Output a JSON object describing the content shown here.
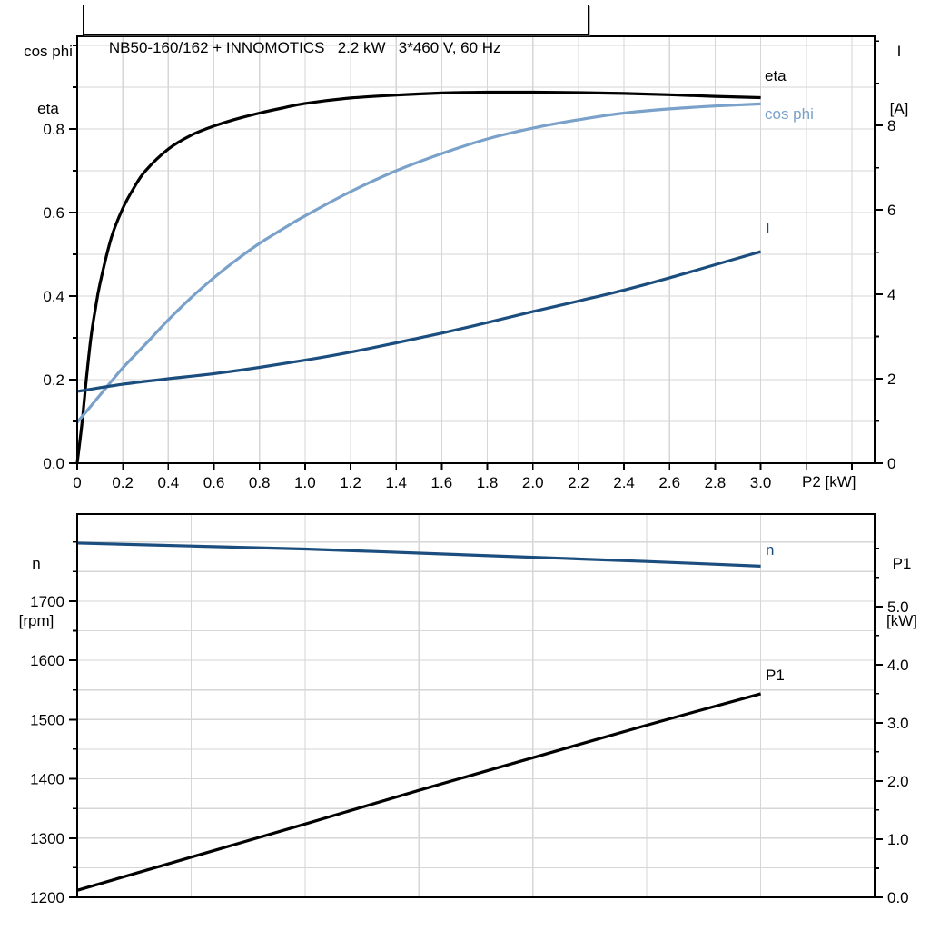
{
  "title": "NB50-160/162 + INNOMOTICS   2.2 kW   3*460 V, 60 Hz",
  "colors": {
    "background": "#ffffff",
    "grid": "#d6d6d6",
    "axis": "#000000",
    "eta": "#000000",
    "cos_phi": "#7aa1c9",
    "current": "#1b4e7e",
    "speed": "#1b4e7e",
    "p1": "#000000"
  },
  "chart_data": [
    {
      "type": "line",
      "title": "NB50-160/162 + INNOMOTICS   2.2 kW   3*460 V, 60 Hz",
      "x_axis": {
        "label": "P2 [kW]",
        "min": 0,
        "max": 3.5,
        "grid_step": 0.2,
        "tick_step": 0.2,
        "tick_max": 3.4,
        "ticks": [
          [
            0,
            "0"
          ],
          [
            0.2,
            "0.2"
          ],
          [
            0.4,
            "0.4"
          ],
          [
            0.6,
            "0.6"
          ],
          [
            0.8,
            "0.8"
          ],
          [
            1,
            "1.0"
          ],
          [
            1.2,
            "1.2"
          ],
          [
            1.4,
            "1.4"
          ],
          [
            1.6,
            "1.6"
          ],
          [
            1.8,
            "1.8"
          ],
          [
            2,
            "2.0"
          ],
          [
            2.2,
            "2.2"
          ],
          [
            2.4,
            "2.4"
          ],
          [
            2.6,
            "2.6"
          ],
          [
            2.8,
            "2.8"
          ],
          [
            3,
            "3.0"
          ]
        ]
      },
      "y_left": {
        "label": [
          "cos phi",
          "eta"
        ],
        "min": 0,
        "max": 1.0217,
        "grid_step": 0.1,
        "minor_tick_step": 0.1,
        "tick_max": 1.0,
        "ticks": [
          [
            0,
            "0.0"
          ],
          [
            0.2,
            "0.2"
          ],
          [
            0.4,
            "0.4"
          ],
          [
            0.6,
            "0.6"
          ],
          [
            0.8,
            "0.8"
          ]
        ]
      },
      "y_right": {
        "label": [
          "I",
          "[A]"
        ],
        "min": 0,
        "max": 10.11,
        "minor_tick_step": 1,
        "tick_max": 10,
        "ticks": [
          [
            0,
            "0"
          ],
          [
            2,
            "2"
          ],
          [
            4,
            "4"
          ],
          [
            6,
            "6"
          ],
          [
            8,
            "8"
          ]
        ]
      },
      "series": [
        {
          "name": "eta",
          "axis": "left",
          "color": "#000000",
          "points": [
            [
              0,
              0
            ],
            [
              0.02,
              0.09
            ],
            [
              0.04,
              0.2
            ],
            [
              0.06,
              0.3
            ],
            [
              0.08,
              0.37
            ],
            [
              0.1,
              0.43
            ],
            [
              0.15,
              0.54
            ],
            [
              0.2,
              0.61
            ],
            [
              0.25,
              0.66
            ],
            [
              0.3,
              0.7
            ],
            [
              0.4,
              0.752
            ],
            [
              0.5,
              0.785
            ],
            [
              0.6,
              0.807
            ],
            [
              0.7,
              0.824
            ],
            [
              0.8,
              0.838
            ],
            [
              0.9,
              0.85
            ],
            [
              1,
              0.861
            ],
            [
              1.2,
              0.874
            ],
            [
              1.4,
              0.881
            ],
            [
              1.6,
              0.886
            ],
            [
              1.8,
              0.888
            ],
            [
              2,
              0.888
            ],
            [
              2.2,
              0.887
            ],
            [
              2.4,
              0.885
            ],
            [
              2.6,
              0.882
            ],
            [
              2.8,
              0.878
            ],
            [
              3,
              0.875
            ]
          ]
        },
        {
          "name": "cos phi",
          "axis": "left",
          "color": "#7aa1c9",
          "points": [
            [
              0,
              0.098
            ],
            [
              0.05,
              0.13
            ],
            [
              0.1,
              0.163
            ],
            [
              0.2,
              0.228
            ],
            [
              0.3,
              0.285
            ],
            [
              0.4,
              0.343
            ],
            [
              0.5,
              0.396
            ],
            [
              0.6,
              0.444
            ],
            [
              0.7,
              0.487
            ],
            [
              0.8,
              0.526
            ],
            [
              0.9,
              0.56
            ],
            [
              1,
              0.592
            ],
            [
              1.2,
              0.65
            ],
            [
              1.4,
              0.7
            ],
            [
              1.6,
              0.741
            ],
            [
              1.8,
              0.776
            ],
            [
              2,
              0.802
            ],
            [
              2.2,
              0.822
            ],
            [
              2.4,
              0.838
            ],
            [
              2.6,
              0.848
            ],
            [
              2.8,
              0.855
            ],
            [
              3,
              0.86
            ]
          ]
        },
        {
          "name": "I",
          "axis": "right",
          "color": "#1b4e7e",
          "points": [
            [
              0,
              1.7
            ],
            [
              0.2,
              1.87
            ],
            [
              0.4,
              2.0
            ],
            [
              0.6,
              2.12
            ],
            [
              0.8,
              2.27
            ],
            [
              1,
              2.44
            ],
            [
              1.2,
              2.63
            ],
            [
              1.4,
              2.85
            ],
            [
              1.6,
              3.08
            ],
            [
              1.8,
              3.33
            ],
            [
              2,
              3.59
            ],
            [
              2.2,
              3.84
            ],
            [
              2.4,
              4.1
            ],
            [
              2.6,
              4.39
            ],
            [
              2.8,
              4.7
            ],
            [
              3,
              5.01
            ]
          ]
        }
      ]
    },
    {
      "type": "line",
      "x_axis": {
        "label": "",
        "min": 0,
        "max": 3.5,
        "grid_step": 0.5,
        "tick_step": null,
        "ticks": []
      },
      "y_left": {
        "label": [
          "n",
          "[rpm]"
        ],
        "min": 1200,
        "max": 1847,
        "grid_step": 50,
        "minor_tick_step": 50,
        "tick_max": 1800,
        "ticks": [
          [
            1200,
            "1200"
          ],
          [
            1300,
            "1300"
          ],
          [
            1400,
            "1400"
          ],
          [
            1500,
            "1500"
          ],
          [
            1600,
            "1600"
          ],
          [
            1700,
            "1700"
          ]
        ]
      },
      "y_right": {
        "label": [
          "P1",
          "[kW]"
        ],
        "min": 0,
        "max": 6.59,
        "minor_tick_step": 0.5,
        "tick_max": 6,
        "ticks": [
          [
            0,
            "0.0"
          ],
          [
            1,
            "1.0"
          ],
          [
            2,
            "2.0"
          ],
          [
            3,
            "3.0"
          ],
          [
            4,
            "4.0"
          ],
          [
            5,
            "5.0"
          ]
        ]
      },
      "series": [
        {
          "name": "n",
          "axis": "left",
          "color": "#1b4e7e",
          "points": [
            [
              0,
              1798
            ],
            [
              0.5,
              1793
            ],
            [
              1,
              1788
            ],
            [
              1.5,
              1781
            ],
            [
              2,
              1774
            ],
            [
              2.5,
              1767
            ],
            [
              3,
              1759
            ]
          ]
        },
        {
          "name": "P1",
          "axis": "right",
          "color": "#000000",
          "points": [
            [
              0,
              0.12
            ],
            [
              0.5,
              0.69
            ],
            [
              1,
              1.26
            ],
            [
              1.5,
              1.84
            ],
            [
              2,
              2.4
            ],
            [
              2.5,
              2.96
            ],
            [
              3,
              3.5
            ]
          ]
        }
      ]
    }
  ]
}
